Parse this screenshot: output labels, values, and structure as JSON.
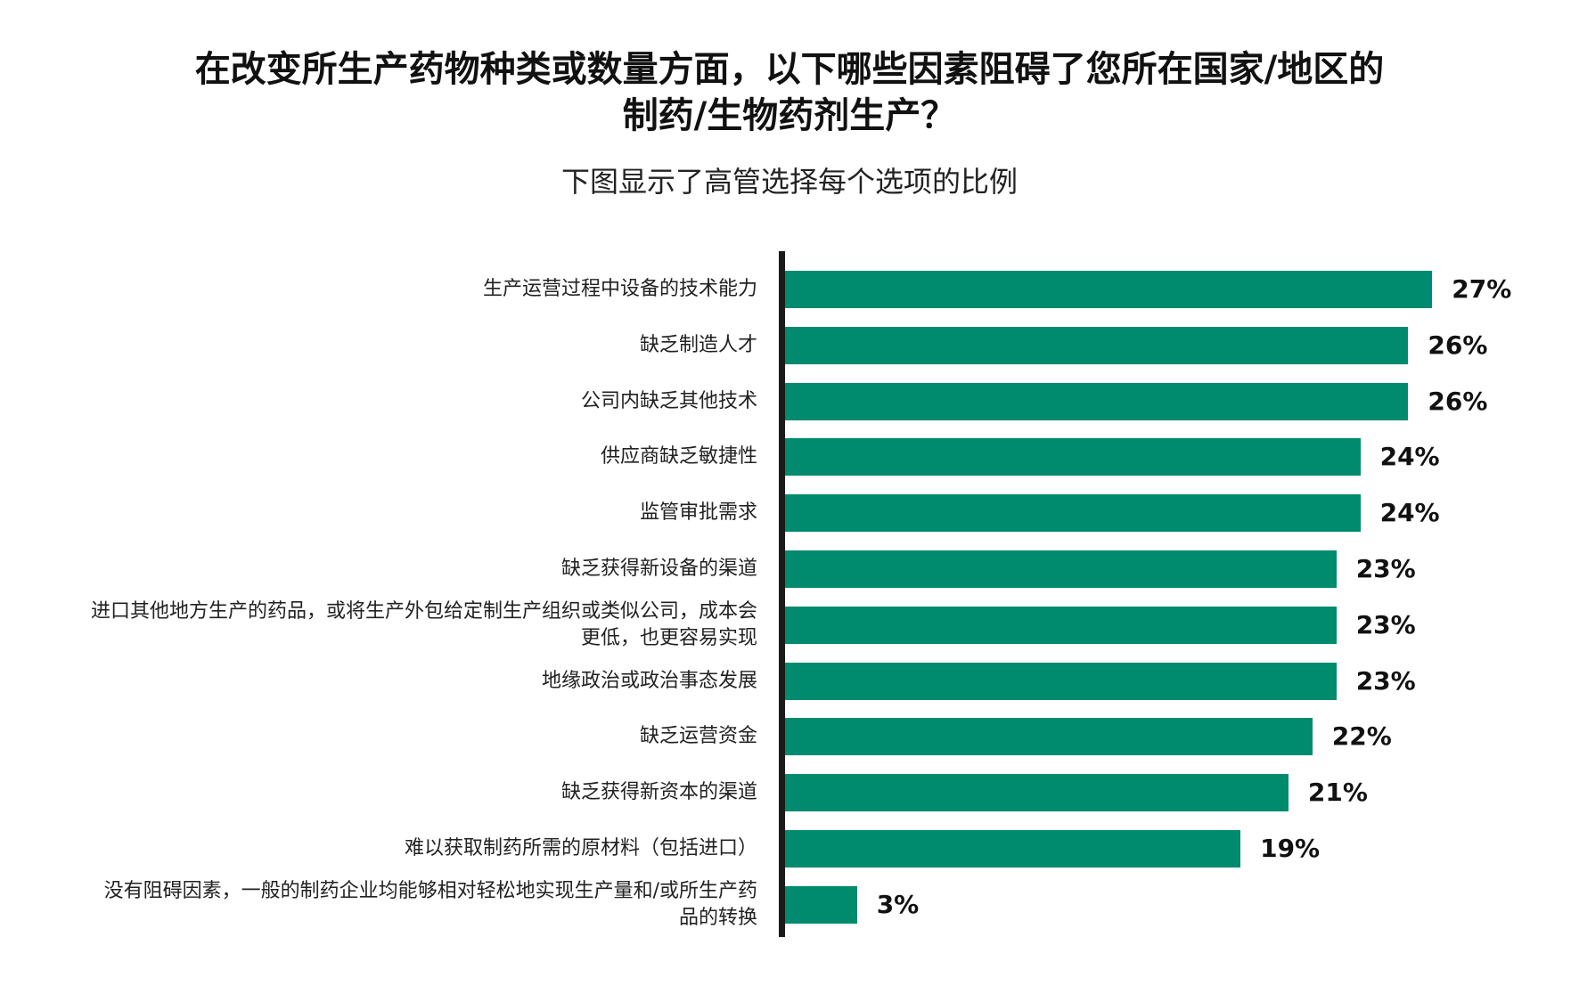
{
  "chart_data": {
    "type": "bar",
    "orientation": "horizontal",
    "title": [
      "在改变所生产药物种类或数量方面，以下哪些因素阻碍了您所在国家/地区的",
      "制药/生物药剂生产？"
    ],
    "subtitle": "下图显示了高管选择每个选项的比例",
    "xlabel": "",
    "ylabel": "",
    "xlim": [
      0,
      27
    ],
    "grid": false,
    "legend": "none",
    "bar_color": "#008a6e",
    "categories": [
      [
        "生产运营过程中设备的技术能力"
      ],
      [
        "缺乏制造人才"
      ],
      [
        "公司内缺乏其他技术"
      ],
      [
        "供应商缺乏敏捷性"
      ],
      [
        "监管审批需求"
      ],
      [
        "缺乏获得新设备的渠道"
      ],
      [
        "进口其他地方生产的药品，或将生产外包给定制生产组织或类似公司，成本会",
        "更低，也更容易实现"
      ],
      [
        "地缘政治或政治事态发展"
      ],
      [
        "缺乏运营资金"
      ],
      [
        "缺乏获得新资本的渠道"
      ],
      [
        "难以获取制药所需的原材料（包括进口）"
      ],
      [
        "没有阻碍因素，一般的制药企业均能够相对轻松地实现生产量和/或所生产药",
        "品的转换"
      ]
    ],
    "values": [
      27,
      26,
      26,
      24,
      24,
      23,
      23,
      23,
      22,
      21,
      19,
      3
    ],
    "value_labels": [
      "27%",
      "26%",
      "26%",
      "24%",
      "24%",
      "23%",
      "23%",
      "23%",
      "22%",
      "21%",
      "19%",
      "3%"
    ]
  }
}
